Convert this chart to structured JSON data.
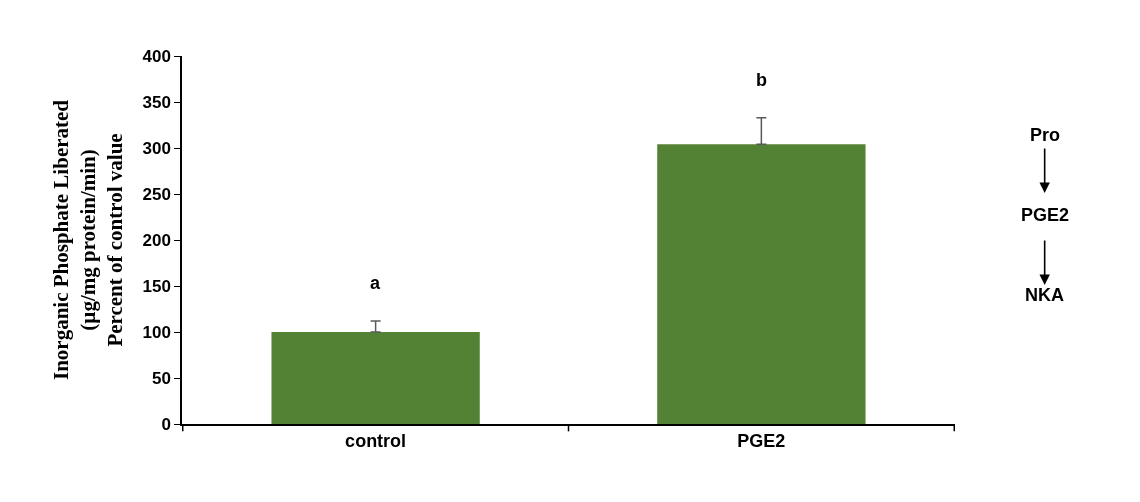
{
  "chart_data": {
    "type": "bar",
    "ylabel": "Inorganic Phosphate Liberated\n(µg/mg protein/min)\nPercent of control value",
    "categories": [
      "control",
      "PGE2"
    ],
    "values": [
      100,
      304
    ],
    "color": "#548235",
    "errors": [
      [
        100,
        112
      ],
      [
        304,
        333
      ]
    ],
    "ylim": [
      0,
      400
    ],
    "yticks": [
      0,
      50,
      100,
      150,
      200,
      250,
      300,
      350,
      400
    ],
    "grid": false,
    "annotations": [
      "a",
      "b",
      "Pro",
      "PGE2",
      "NKA"
    ]
  }
}
